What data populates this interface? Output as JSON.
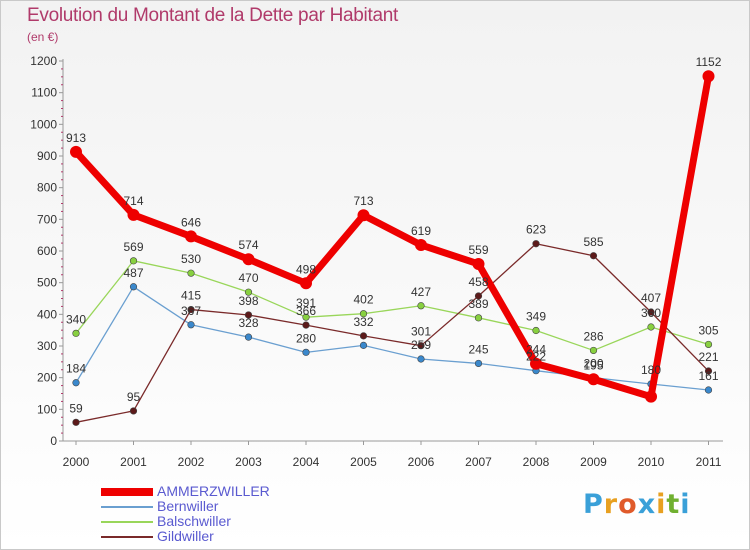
{
  "header": {
    "title": "Evolution du Montant de la Dette par Habitant",
    "unit": "(en €)"
  },
  "logo": {
    "text": "Proxiti",
    "colors": [
      "#3aa0d8",
      "#e8a020",
      "#e05a2a",
      "#3aa0d8",
      "#e8a020",
      "#70b030",
      "#3aa0d8"
    ]
  },
  "chart_data": {
    "type": "line",
    "title": "Evolution du Montant de la Dette par Habitant",
    "ylabel": "(en €)",
    "xlabel": "",
    "ylim": [
      0,
      1200
    ],
    "yticks": [
      0,
      100,
      200,
      300,
      400,
      500,
      600,
      700,
      800,
      900,
      1000,
      1100,
      1200
    ],
    "categories": [
      "2000",
      "2001",
      "2002",
      "2003",
      "2004",
      "2005",
      "2006",
      "2007",
      "2008",
      "2009",
      "2010",
      "2011"
    ],
    "grid": false,
    "legend_position": "bottom-left",
    "series": [
      {
        "name": "AMMERZWILLER",
        "color": "#ee0000",
        "marker": "#ee0000",
        "thick": true,
        "values": [
          913,
          714,
          646,
          574,
          498,
          713,
          619,
          559,
          244,
          195,
          140,
          1152
        ],
        "labels": [
          "913",
          "714",
          "646",
          "574",
          "498",
          "713",
          "619",
          "559",
          "244",
          "195",
          "",
          "1152"
        ]
      },
      {
        "name": "Bernwiller",
        "color": "#6a9fd0",
        "marker": "#3a88cc",
        "thick": false,
        "values": [
          184,
          487,
          367,
          328,
          280,
          302,
          259,
          245,
          222,
          200,
          180,
          161
        ],
        "labels": [
          "184",
          "487",
          "367",
          "328",
          "280",
          "",
          "259",
          "245",
          "222",
          "200",
          "180",
          "161"
        ]
      },
      {
        "name": "Balschwiller",
        "color": "#99d65a",
        "marker": "#88d040",
        "thick": false,
        "values": [
          340,
          569,
          530,
          470,
          391,
          402,
          427,
          389,
          349,
          286,
          360,
          305
        ],
        "labels": [
          "340",
          "569",
          "530",
          "470",
          "391",
          "402",
          "427",
          "389",
          "349",
          "286",
          "360",
          "305"
        ]
      },
      {
        "name": "Gildwiller",
        "color": "#7a2a2a",
        "marker": "#5c1a1a",
        "thick": false,
        "values": [
          59,
          95,
          415,
          398,
          366,
          332,
          301,
          458,
          623,
          585,
          407,
          221
        ],
        "labels": [
          "59",
          "95",
          "415",
          "398",
          "366",
          "332",
          "301",
          "458",
          "623",
          "585",
          "407",
          "221"
        ]
      }
    ]
  }
}
